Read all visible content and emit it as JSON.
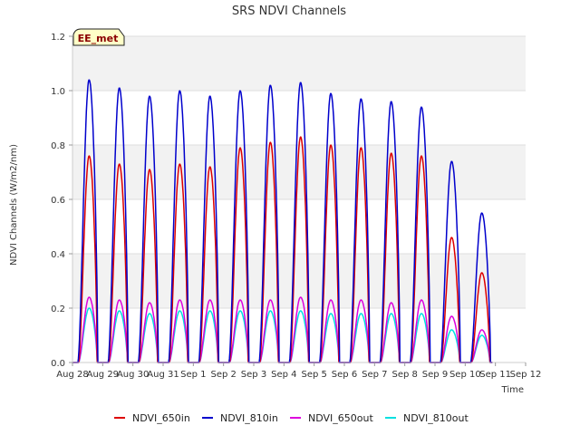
{
  "chart_data": {
    "type": "line",
    "title": "SRS NDVI Channels",
    "xlabel": "Time",
    "ylabel": "NDVI Channels (W/m2/nm)",
    "ylim": [
      0,
      1.2
    ],
    "xlim": [
      0,
      15
    ],
    "yticks": [
      "0.0",
      "0.2",
      "0.4",
      "0.6",
      "0.8",
      "1.0",
      "1.2"
    ],
    "xtick_labels": [
      "Aug 28",
      "Aug 29",
      "Aug 30",
      "Aug 31",
      "Sep 1",
      "Sep 2",
      "Sep 3",
      "Sep 4",
      "Sep 5",
      "Sep 6",
      "Sep 7",
      "Sep 8",
      "Sep 9",
      "Sep 10",
      "Sep 11",
      "Sep 12"
    ],
    "grid": true,
    "legend_position": "bottom",
    "annotation": "EE_met",
    "series": [
      {
        "name": "NDVI_650in",
        "color": "#dd0000",
        "daily_peaks": [
          0.76,
          0.73,
          0.71,
          0.73,
          0.72,
          0.79,
          0.81,
          0.83,
          0.8,
          0.79,
          0.77,
          0.76,
          0.46,
          0.33
        ]
      },
      {
        "name": "NDVI_810in",
        "color": "#0000cc",
        "daily_peaks": [
          1.04,
          1.01,
          0.98,
          1.0,
          0.98,
          1.0,
          1.02,
          1.03,
          0.99,
          0.97,
          0.96,
          0.94,
          0.74,
          0.55
        ]
      },
      {
        "name": "NDVI_650out",
        "color": "#dd00dd",
        "daily_peaks": [
          0.24,
          0.23,
          0.22,
          0.23,
          0.23,
          0.23,
          0.23,
          0.24,
          0.23,
          0.23,
          0.22,
          0.23,
          0.17,
          0.12
        ]
      },
      {
        "name": "NDVI_810out",
        "color": "#00e0e0",
        "daily_peaks": [
          0.2,
          0.19,
          0.18,
          0.19,
          0.19,
          0.19,
          0.19,
          0.19,
          0.18,
          0.18,
          0.18,
          0.18,
          0.12,
          0.1
        ]
      }
    ]
  }
}
